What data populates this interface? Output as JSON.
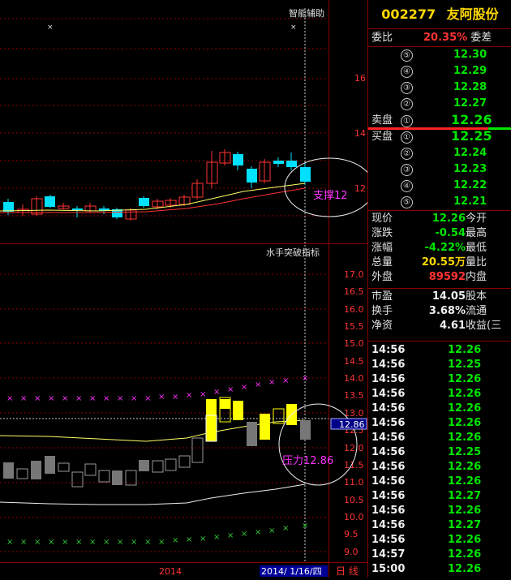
{
  "chart": {
    "top_indicator_title": "智能辅助",
    "bottom_indicator_title": "水手突破指标",
    "annotation_support": "支撑12",
    "annotation_pressure": "压力12.86",
    "top_axis_labels": [
      "16",
      "14",
      "12"
    ],
    "bottom_axis_labels": [
      "17.0",
      "16.5",
      "16.0",
      "15.5",
      "15.0",
      "14.5",
      "14.0",
      "13.5",
      "13.0",
      "12.5",
      "12.0",
      "11.5",
      "11.0",
      "10.5",
      "10.0",
      "9.5",
      "9.0"
    ],
    "price_marker": "12.86",
    "year_label": "2014",
    "date_label": "2014/ 1/16/四",
    "period_label": "日 线",
    "colors": {
      "up": "#ff3333",
      "down": "#00e0ff",
      "support_ma": "#ffff66",
      "grid": "#8a0000",
      "accent_magenta": "#ff33ff"
    }
  },
  "quote": {
    "code": "002277",
    "name": "友阿股份",
    "weibi_label": "委比",
    "weibi_value": "20.35%",
    "weicha_label": "委差",
    "sell_label": "卖盘",
    "buy_label": "买盘",
    "asks": [
      {
        "level": "⑤",
        "price": "12.30"
      },
      {
        "level": "④",
        "price": "12.29"
      },
      {
        "level": "③",
        "price": "12.28"
      },
      {
        "level": "②",
        "price": "12.27"
      },
      {
        "level": "①",
        "price": "12.26"
      }
    ],
    "bids": [
      {
        "level": "①",
        "price": "12.25"
      },
      {
        "level": "②",
        "price": "12.24"
      },
      {
        "level": "③",
        "price": "12.23"
      },
      {
        "level": "④",
        "price": "12.22"
      },
      {
        "level": "⑤",
        "price": "12.21"
      }
    ],
    "stats": [
      {
        "label": "现价",
        "value": "12.26",
        "tail": "今开",
        "cls": "green"
      },
      {
        "label": "涨跌",
        "value": "-0.54",
        "tail": "最高",
        "cls": "green"
      },
      {
        "label": "涨幅",
        "value": "-4.22%",
        "tail": "最低",
        "cls": "green"
      },
      {
        "label": "总量",
        "value": "20.55万",
        "tail": "量比",
        "cls": "yellow"
      },
      {
        "label": "外盘",
        "value": "89592",
        "tail": "内盘",
        "cls": "red"
      },
      {
        "label": "市盈",
        "value": "14.05",
        "tail": "股本",
        "cls": "white"
      },
      {
        "label": "换手",
        "value": "3.68%",
        "tail": "流通",
        "cls": "white"
      },
      {
        "label": "净资",
        "value": "4.61",
        "tail": "收益(三",
        "cls": "white"
      }
    ],
    "ticks": [
      {
        "time": "14:56",
        "price": "12.26"
      },
      {
        "time": "14:56",
        "price": "12.25"
      },
      {
        "time": "14:56",
        "price": "12.26"
      },
      {
        "time": "14:56",
        "price": "12.26"
      },
      {
        "time": "14:56",
        "price": "12.26"
      },
      {
        "time": "14:56",
        "price": "12.26"
      },
      {
        "time": "14:56",
        "price": "12.26"
      },
      {
        "time": "14:56",
        "price": "12.25"
      },
      {
        "time": "14:56",
        "price": "12.26"
      },
      {
        "time": "14:56",
        "price": "12.26"
      },
      {
        "time": "14:56",
        "price": "12.27"
      },
      {
        "time": "14:56",
        "price": "12.26"
      },
      {
        "time": "14:56",
        "price": "12.27"
      },
      {
        "time": "14:56",
        "price": "12.26"
      },
      {
        "time": "14:57",
        "price": "12.26"
      },
      {
        "time": "15:00",
        "price": "12.26"
      }
    ]
  }
}
